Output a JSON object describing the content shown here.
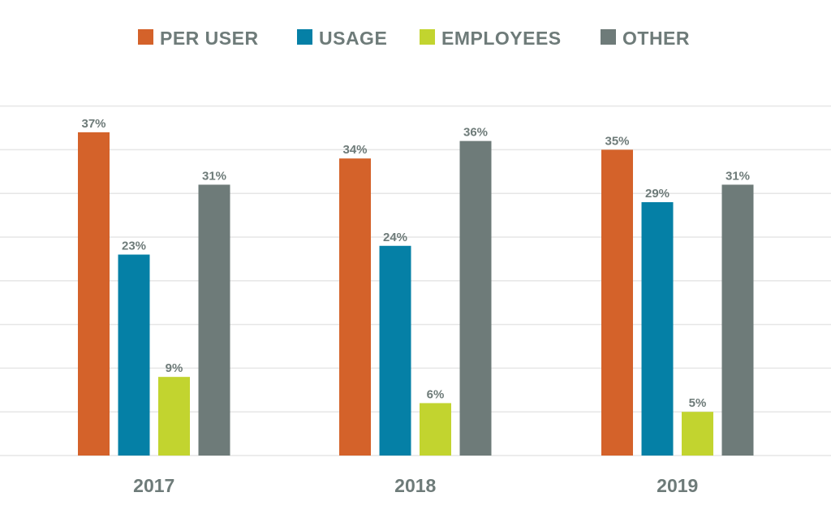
{
  "chart_data": {
    "type": "bar",
    "categories": [
      "2017",
      "2018",
      "2019"
    ],
    "series": [
      {
        "name": "PER USER",
        "color": "#d4622a",
        "values": [
          37,
          34,
          35
        ],
        "labels": [
          "37%",
          "34%",
          "35%"
        ]
      },
      {
        "name": "USAGE",
        "color": "#0580a6",
        "values": [
          23,
          24,
          29
        ],
        "labels": [
          "23%",
          "24%",
          "29%"
        ]
      },
      {
        "name": "EMPLOYEES",
        "color": "#c2d42f",
        "values": [
          9,
          6,
          5
        ],
        "labels": [
          "9%",
          "6%",
          "5%"
        ]
      },
      {
        "name": "OTHER",
        "color": "#6e7b79",
        "values": [
          31,
          36,
          31
        ],
        "labels": [
          "31%",
          "36%",
          "31%"
        ]
      }
    ],
    "ylim": [
      0,
      40
    ],
    "grid": true,
    "legend": "top",
    "text_color": "#6e7b79",
    "grid_color": "#e6e6e6"
  }
}
